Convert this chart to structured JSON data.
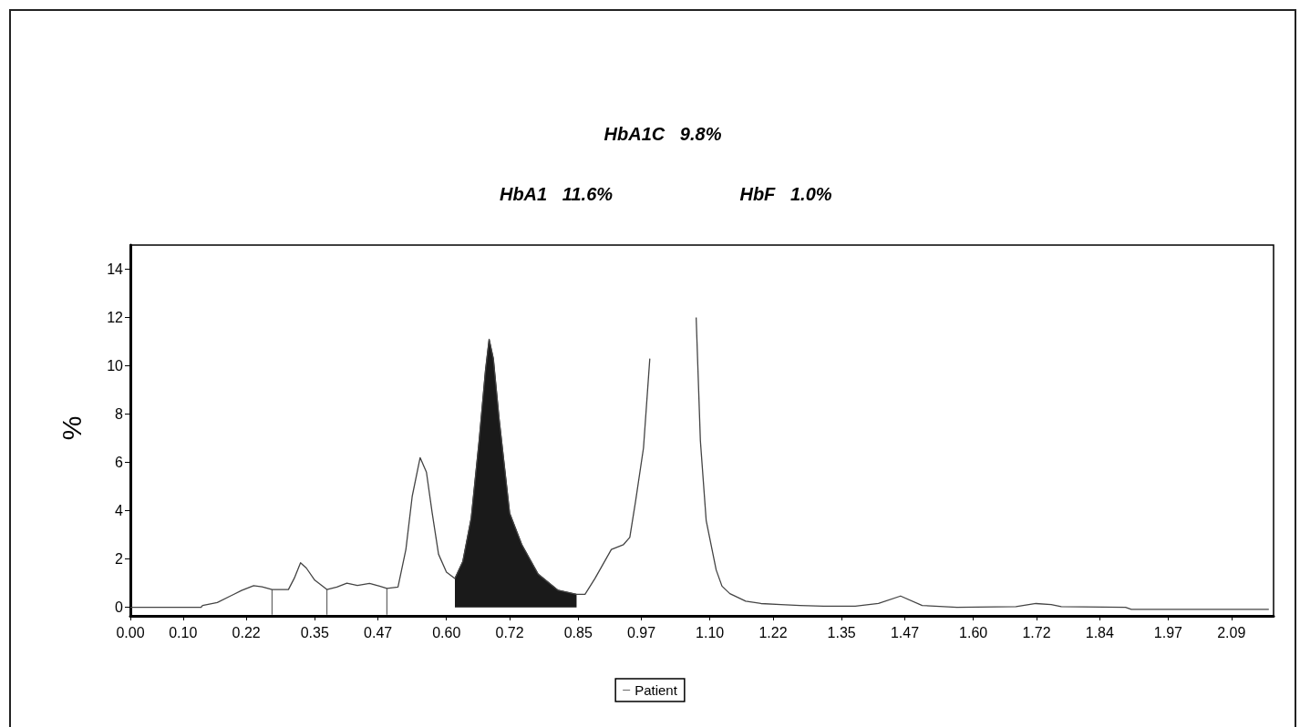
{
  "chart_data": {
    "type": "line",
    "annotations": [
      "HbA1C   9.8%",
      "HbA1   11.6%",
      "HbF   1.0%"
    ],
    "ylabel": "%",
    "xlim": [
      0,
      2.17
    ],
    "ylim": [
      -0.35,
      15
    ],
    "xticks": [
      {
        "value": 0,
        "label": "0.00"
      },
      {
        "value": 0.1,
        "label": "0.10"
      },
      0.22,
      0.35,
      0.47,
      {
        "value": 0.6,
        "label": "0.60"
      },
      0.72,
      0.85,
      0.97,
      {
        "value": 1.1,
        "label": "1.10"
      },
      1.22,
      1.35,
      1.47,
      {
        "value": 1.6,
        "label": "1.60"
      },
      1.72,
      1.84,
      1.97,
      2.09
    ],
    "yticks": [
      0,
      2,
      4,
      6,
      8,
      10,
      12,
      14
    ],
    "legend": "bottom",
    "marker": "none",
    "series": [
      {
        "type": "area",
        "color": "#1a1a1a",
        "x": [
          0.616,
          0.631,
          0.647,
          0.662,
          0.674,
          0.681,
          0.689,
          0.7,
          0.72,
          0.743,
          0.774,
          0.812,
          0.847
        ],
        "values": [
          1.2,
          1.9,
          3.7,
          6.9,
          9.8,
          11.1,
          10.3,
          7.8,
          3.9,
          2.6,
          1.38,
          0.71,
          0.54
        ]
      },
      {
        "type": "line",
        "color": "#6a6a6a",
        "x": [
          0.269,
          0.269,
          0.32,
          0.373,
          0.373,
          0.43,
          0.487,
          0.487
        ],
        "values": [
          0.74,
          -0.3,
          null,
          0.74,
          -0.3,
          null,
          0.79,
          -0.3
        ]
      },
      {
        "name": "Patient",
        "color": "#444444",
        "x": [
          0,
          0.041,
          0.134,
          0.137,
          0.165,
          0.188,
          0.211,
          0.234,
          0.25,
          0.269,
          0.3,
          0.311,
          0.323,
          0.334,
          0.35,
          0.373,
          0.392,
          0.411,
          0.431,
          0.454,
          0.473,
          0.487,
          0.508,
          0.523,
          0.535,
          0.55,
          0.562,
          0.573,
          0.585,
          0.6,
          0.616,
          0.631,
          0.647,
          0.662,
          0.674,
          0.681,
          0.689,
          0.7,
          0.72,
          0.743,
          0.774,
          0.812,
          0.847,
          0.863,
          0.882,
          0.913,
          0.936,
          0.948,
          0.959,
          0.974,
          0.986,
          0.994,
          1.03,
          1.071,
          1.074,
          1.082,
          1.093,
          1.112,
          1.123,
          1.138,
          1.168,
          1.197,
          1.235,
          1.271,
          1.316,
          1.376,
          1.42,
          1.462,
          1.503,
          1.569,
          1.681,
          1.719,
          1.748,
          1.767,
          1.889,
          1.9,
          2.161
        ],
        "values": [
          0,
          0,
          0,
          0.08,
          0.2,
          0.45,
          0.7,
          0.9,
          0.85,
          0.74,
          0.74,
          1.2,
          1.85,
          1.63,
          1.13,
          0.74,
          0.84,
          1.0,
          0.91,
          0.99,
          0.88,
          0.79,
          0.84,
          2.4,
          4.6,
          6.2,
          5.6,
          3.9,
          2.2,
          1.46,
          1.2,
          1.9,
          3.7,
          6.9,
          9.8,
          11.1,
          10.3,
          7.8,
          3.9,
          2.6,
          1.38,
          0.71,
          0.54,
          0.54,
          1.2,
          2.4,
          2.6,
          2.9,
          4.4,
          6.6,
          10.3,
          null,
          null,
          null,
          12.0,
          6.9,
          3.6,
          1.55,
          0.88,
          0.57,
          0.26,
          0.16,
          0.12,
          0.08,
          0.05,
          0.05,
          0.16,
          0.47,
          0.08,
          0,
          0.03,
          0.16,
          0.12,
          0.03,
          0,
          -0.08,
          -0.08
        ]
      }
    ]
  }
}
